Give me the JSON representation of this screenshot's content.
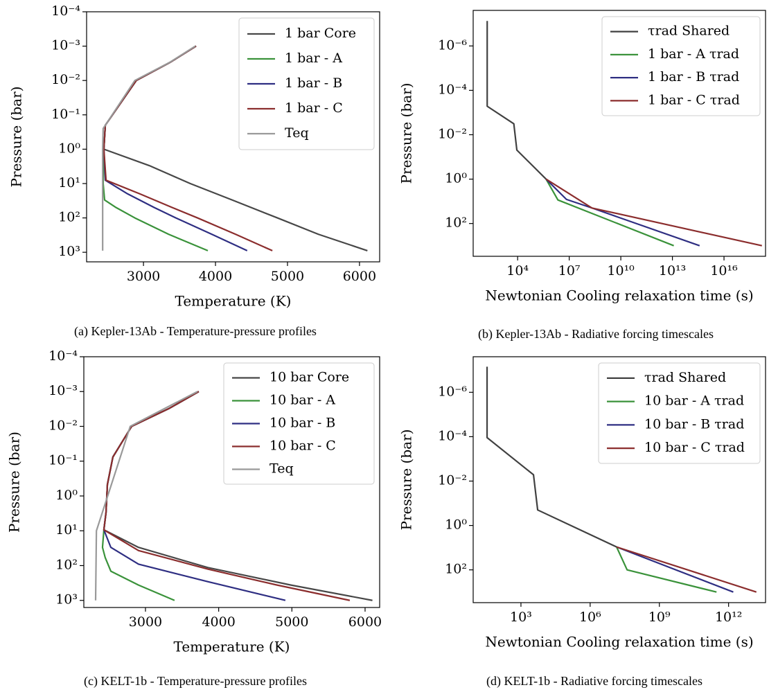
{
  "chart_data": [
    {
      "type": "line",
      "caption": "(a) Kepler-13Ab - Temperature-pressure profiles",
      "xlabel": "Temperature (K)",
      "ylabel": "Pressure (bar)",
      "xlim": [
        2210,
        6280
      ],
      "xticks": [
        3000,
        4000,
        5000,
        6000
      ],
      "xlog": false,
      "ylim": [
        0.0001,
        1900
      ],
      "ylog": true,
      "y_inverted": true,
      "yticks": [
        {
          "value": 0.0001,
          "label": "10⁻⁴"
        },
        {
          "value": 0.001,
          "label": "10⁻³"
        },
        {
          "value": 0.01,
          "label": "10⁻²"
        },
        {
          "value": 0.1,
          "label": "10⁻¹"
        },
        {
          "value": 1,
          "label": "10⁰"
        },
        {
          "value": 10,
          "label": "10¹"
        },
        {
          "value": 100,
          "label": "10²"
        },
        {
          "value": 1000,
          "label": "10³"
        }
      ],
      "legend": "upper right",
      "series": [
        {
          "name": "1 bar Core",
          "color": "#474747",
          "x": [
            3730,
            3365,
            2900,
            2470,
            2450,
            3080,
            3650,
            4230,
            4860,
            5430,
            6110
          ],
          "values": [
            0.001,
            0.003,
            0.01,
            0.2,
            1,
            3,
            10,
            30,
            100,
            300,
            900
          ]
        },
        {
          "name": "1 bar - A",
          "color": "#3a923a",
          "x": [
            3730,
            3365,
            2900,
            2470,
            2450,
            2440,
            2460,
            2620,
            2880,
            3350,
            3894
          ],
          "values": [
            0.001,
            0.003,
            0.01,
            0.2,
            1,
            10,
            30,
            50,
            100,
            300,
            900
          ]
        },
        {
          "name": "1 bar - B",
          "color": "#2e2e82",
          "x": [
            3730,
            3365,
            2900,
            2470,
            2450,
            2470,
            2780,
            3150,
            3450,
            3950,
            4440
          ],
          "values": [
            0.001,
            0.003,
            0.01,
            0.2,
            1,
            8,
            20,
            50,
            100,
            300,
            900
          ]
        },
        {
          "name": "1 bar - C",
          "color": "#8b2d2d",
          "x": [
            3730,
            3365,
            2900,
            2470,
            2450,
            2480,
            2950,
            3400,
            3750,
            4280,
            4790
          ],
          "values": [
            0.001,
            0.003,
            0.01,
            0.2,
            1,
            8,
            20,
            50,
            100,
            300,
            900
          ]
        },
        {
          "name": "Teq",
          "color": "#999999",
          "x": [
            3720,
            3360,
            2880,
            2440,
            2433,
            2433
          ],
          "values": [
            0.001,
            0.003,
            0.01,
            0.25,
            1,
            900
          ]
        }
      ]
    },
    {
      "type": "line",
      "caption": "(b) Kepler-13Ab - Radiative forcing timescales",
      "xlabel": "Newtonian Cooling relaxation time (s)",
      "ylabel": "Pressure (bar)",
      "xlim": [
        26,
        2.6e+18
      ],
      "xlog": true,
      "xticks": [
        {
          "value": 10000,
          "label": "10⁴"
        },
        {
          "value": 10000000,
          "label": "10⁷"
        },
        {
          "value": 10000000000,
          "label": "10¹⁰"
        },
        {
          "value": 10000000000000,
          "label": "10¹³"
        },
        {
          "value": 1e+16,
          "label": "10¹⁶"
        }
      ],
      "ylim": [
        2.5e-08,
        3000
      ],
      "ylog": true,
      "y_inverted": true,
      "yticks": [
        {
          "value": 1e-06,
          "label": "10⁻⁶"
        },
        {
          "value": 0.0001,
          "label": "10⁻⁴"
        },
        {
          "value": 0.01,
          "label": "10⁻²"
        },
        {
          "value": 1,
          "label": "10⁰"
        },
        {
          "value": 100,
          "label": "10²"
        }
      ],
      "legend": "upper right",
      "series": [
        {
          "name": "τrad Shared",
          "color": "#404040",
          "x": [
            170,
            170,
            6000,
            9000,
            450000
          ],
          "values": [
            7.5e-08,
            0.00052,
            0.0032,
            0.049,
            1
          ]
        },
        {
          "name": "1 bar - A τrad",
          "color": "#3a923a",
          "x": [
            450000,
            2200000,
            12000000000000.0
          ],
          "values": [
            1,
            8.7,
            1000
          ]
        },
        {
          "name": "1 bar - B τrad",
          "color": "#2e2e82",
          "x": [
            450000,
            6900000,
            210000000,
            380000000000000.0
          ],
          "values": [
            1,
            8.2,
            20,
            1000
          ]
        },
        {
          "name": "1 bar - C τrad",
          "color": "#8b2d2d",
          "x": [
            450000,
            210000000,
            1.6e+18
          ],
          "values": [
            1,
            20,
            1000
          ]
        }
      ]
    },
    {
      "type": "line",
      "caption": "(c) KELT-1b - Temperature-pressure profiles",
      "xlabel": "Temperature (K)",
      "ylabel": "Pressure (bar)",
      "xlim": [
        2158,
        6199
      ],
      "xticks": [
        3000,
        4000,
        5000,
        6000
      ],
      "xlog": false,
      "ylim": [
        0.0001,
        1600
      ],
      "ylog": true,
      "y_inverted": true,
      "yticks": [
        {
          "value": 0.0001,
          "label": "10⁻⁴"
        },
        {
          "value": 0.001,
          "label": "10⁻³"
        },
        {
          "value": 0.01,
          "label": "10⁻²"
        },
        {
          "value": 0.1,
          "label": "10⁻¹"
        },
        {
          "value": 1,
          "label": "10⁰"
        },
        {
          "value": 10,
          "label": "10¹"
        },
        {
          "value": 100,
          "label": "10²"
        },
        {
          "value": 1000,
          "label": "10³"
        }
      ],
      "legend": "upper right",
      "series": [
        {
          "name": "10 bar Core",
          "color": "#474747",
          "x": [
            3728,
            3331,
            2811,
            2555,
            2480,
            2461,
            2432,
            2905,
            3851,
            4987,
            6100
          ],
          "values": [
            0.001,
            0.003,
            0.01,
            0.076,
            0.47,
            3,
            9.4,
            30,
            114,
            363,
            1000
          ]
        },
        {
          "name": "10 bar - A",
          "color": "#3a923a",
          "x": [
            3728,
            3331,
            2811,
            2555,
            2480,
            2461,
            2432,
            2413,
            2450,
            2527,
            2905,
            3397
          ],
          "values": [
            0.001,
            0.003,
            0.01,
            0.076,
            0.47,
            3,
            9.4,
            30,
            59,
            145,
            363,
            1000
          ]
        },
        {
          "name": "10 bar - B",
          "color": "#2e2e82",
          "x": [
            3728,
            3331,
            2811,
            2555,
            2480,
            2461,
            2432,
            2527,
            2905,
            3851,
            4911
          ],
          "values": [
            0.001,
            0.003,
            0.01,
            0.076,
            0.47,
            3,
            9.4,
            30,
            91,
            290,
            1000
          ]
        },
        {
          "name": "10 bar - C",
          "color": "#8b2d2d",
          "x": [
            3728,
            3331,
            2811,
            2555,
            2480,
            2461,
            2432,
            2905,
            3851,
            4798,
            5791
          ],
          "values": [
            0.001,
            0.003,
            0.01,
            0.076,
            0.47,
            3,
            9.4,
            37,
            126,
            363,
            1000
          ]
        },
        {
          "name": "Teq",
          "color": "#999999",
          "x": [
            3710,
            2792,
            2330,
            2319
          ],
          "values": [
            0.001,
            0.01,
            10,
            1000
          ]
        }
      ]
    },
    {
      "type": "line",
      "caption": "(d) KELT-1b - Radiative forcing timescales",
      "xlabel": "Newtonian Cooling relaxation time (s)",
      "ylabel": "Pressure (bar)",
      "xlim": [
        8.5,
        40000000000000
      ],
      "xlog": true,
      "xticks": [
        {
          "value": 1000,
          "label": "10³"
        },
        {
          "value": 1000000,
          "label": "10⁶"
        },
        {
          "value": 1000000000,
          "label": "10⁹"
        },
        {
          "value": 1000000000000,
          "label": "10¹²"
        }
      ],
      "ylim": [
        2.5e-08,
        3000
      ],
      "ylog": true,
      "y_inverted": true,
      "yticks": [
        {
          "value": 1e-06,
          "label": "10⁻⁶"
        },
        {
          "value": 0.0001,
          "label": "10⁻⁴"
        },
        {
          "value": 0.01,
          "label": "10⁻²"
        },
        {
          "value": 1,
          "label": "10⁰"
        },
        {
          "value": 100,
          "label": "10²"
        }
      ],
      "legend": "upper right",
      "series": [
        {
          "name": "τrad Shared",
          "color": "#404040",
          "x": [
            34,
            34,
            3500,
            5300,
            14000000
          ],
          "values": [
            7e-08,
            0.00011,
            0.0052,
            0.2,
            9.3
          ]
        },
        {
          "name": "10 bar - A τrad",
          "color": "#3a923a",
          "x": [
            14000000,
            40000000,
            300000000000
          ],
          "values": [
            9.3,
            100,
            1000
          ]
        },
        {
          "name": "10 bar - B τrad",
          "color": "#2e2e82",
          "x": [
            14000000,
            1600000000000
          ],
          "values": [
            9.3,
            1000
          ]
        },
        {
          "name": "10 bar - C τrad",
          "color": "#8b2d2d",
          "x": [
            14000000,
            16000000000000
          ],
          "values": [
            9.3,
            1000
          ]
        }
      ]
    }
  ]
}
